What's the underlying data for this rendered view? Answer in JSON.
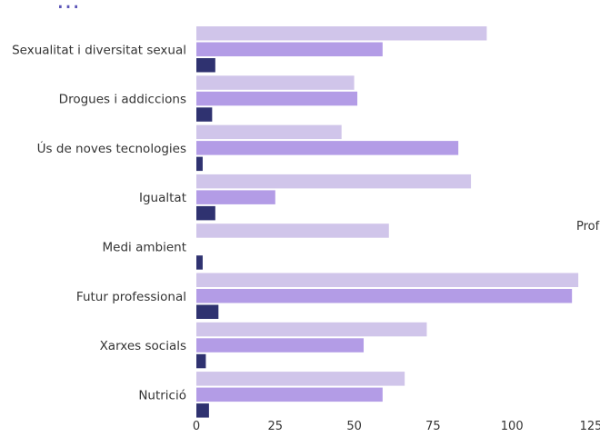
{
  "chart_data": {
    "type": "bar",
    "orientation": "horizontal",
    "title": "…ep… … …g…",
    "legend_fragment": "Prof",
    "categories": [
      "Sexualitat i diversitat sexual",
      "Drogues i addiccions",
      "Ús de noves tecnologies",
      "Igualtat",
      "Medi ambient",
      "Futur professional",
      "Xarxes socials",
      "Nutrició"
    ],
    "series": [
      {
        "color": "#d0c5ea",
        "values": [
          92,
          50,
          46,
          87,
          61,
          121,
          73,
          66
        ]
      },
      {
        "color": "#b39ce6",
        "values": [
          59,
          51,
          83,
          25,
          0,
          119,
          53,
          59
        ]
      },
      {
        "color": "#2f3270",
        "values": [
          6,
          5,
          2,
          6,
          2,
          7,
          3,
          4
        ]
      }
    ],
    "xlim": [
      0,
      125
    ],
    "xticks": [
      0,
      25,
      50,
      75,
      100,
      125
    ],
    "grid": false
  }
}
